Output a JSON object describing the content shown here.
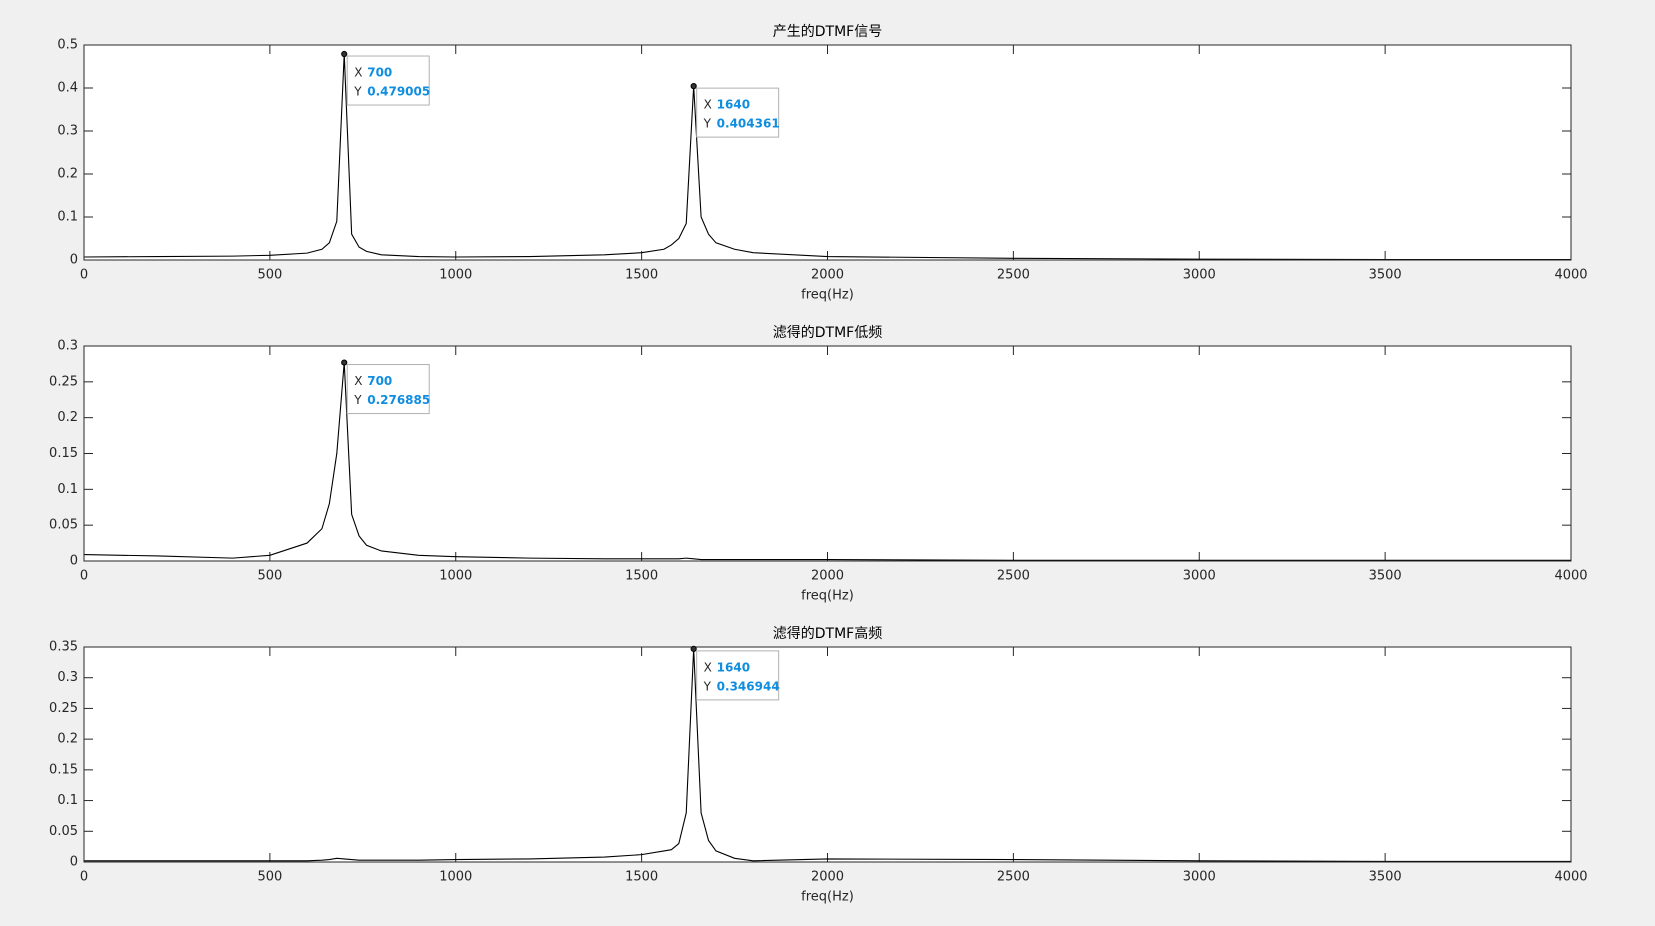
{
  "chart_data": [
    {
      "type": "line",
      "title": "产生的DTMF信号",
      "xlabel": "freq(Hz)",
      "color": "#000000",
      "x": [
        0,
        200,
        400,
        500,
        600,
        640,
        660,
        680,
        700,
        720,
        740,
        760,
        800,
        900,
        1000,
        1200,
        1400,
        1500,
        1560,
        1580,
        1600,
        1620,
        1640,
        1660,
        1680,
        1700,
        1750,
        1800,
        2000,
        2500,
        3000,
        3500,
        4000
      ],
      "values": [
        0.007,
        0.008,
        0.009,
        0.011,
        0.016,
        0.025,
        0.04,
        0.09,
        0.479005,
        0.06,
        0.03,
        0.02,
        0.012,
        0.008,
        0.007,
        0.008,
        0.012,
        0.017,
        0.025,
        0.035,
        0.05,
        0.085,
        0.404361,
        0.1,
        0.06,
        0.04,
        0.025,
        0.017,
        0.008,
        0.004,
        0.002,
        0.001,
        0.001
      ],
      "xlim": [
        0,
        4000
      ],
      "xticks": [
        0,
        500,
        1000,
        1500,
        2000,
        2500,
        3000,
        3500,
        4000
      ],
      "ylim": [
        0,
        0.5
      ],
      "yticks": [
        0,
        0.1,
        0.2,
        0.3,
        0.4,
        0.5
      ],
      "datatips": [
        {
          "x_label": "X",
          "x": 700,
          "y_label": "Y",
          "y": 0.479005
        },
        {
          "x_label": "X",
          "x": 1640,
          "y_label": "Y",
          "y": 0.404361
        }
      ]
    },
    {
      "type": "line",
      "title": "滤得的DTMF低频",
      "xlabel": "freq(Hz)",
      "color": "#000000",
      "x": [
        0,
        200,
        400,
        500,
        600,
        640,
        660,
        680,
        700,
        720,
        740,
        760,
        800,
        900,
        1000,
        1200,
        1400,
        1500,
        1560,
        1580,
        1600,
        1620,
        1640,
        1660,
        1680,
        1700,
        1750,
        1800,
        2000,
        2500,
        3000,
        3500,
        4000
      ],
      "values": [
        0.009,
        0.007,
        0.004,
        0.008,
        0.025,
        0.045,
        0.08,
        0.15,
        0.276885,
        0.065,
        0.035,
        0.022,
        0.014,
        0.008,
        0.006,
        0.004,
        0.003,
        0.003,
        0.003,
        0.003,
        0.003,
        0.004,
        0.003,
        0.002,
        0.002,
        0.002,
        0.002,
        0.002,
        0.002,
        0.001,
        0.001,
        0.001,
        0.001
      ],
      "xlim": [
        0,
        4000
      ],
      "xticks": [
        0,
        500,
        1000,
        1500,
        2000,
        2500,
        3000,
        3500,
        4000
      ],
      "ylim": [
        0,
        0.3
      ],
      "yticks": [
        0,
        0.05,
        0.1,
        0.15,
        0.2,
        0.25,
        0.3
      ],
      "datatips": [
        {
          "x_label": "X",
          "x": 700,
          "y_label": "Y",
          "y": 0.276885
        }
      ]
    },
    {
      "type": "line",
      "title": "滤得的DTMF高频",
      "xlabel": "freq(Hz)",
      "color": "#000000",
      "x": [
        0,
        200,
        400,
        500,
        600,
        640,
        660,
        680,
        700,
        720,
        740,
        760,
        800,
        900,
        1000,
        1200,
        1400,
        1500,
        1560,
        1580,
        1600,
        1620,
        1640,
        1660,
        1680,
        1700,
        1750,
        1800,
        2000,
        2500,
        3000,
        3500,
        4000
      ],
      "values": [
        0.002,
        0.002,
        0.002,
        0.002,
        0.002,
        0.003,
        0.004,
        0.006,
        0.005,
        0.004,
        0.003,
        0.003,
        0.003,
        0.003,
        0.004,
        0.005,
        0.008,
        0.012,
        0.018,
        0.02,
        0.03,
        0.08,
        0.346944,
        0.08,
        0.035,
        0.018,
        0.006,
        0.002,
        0.005,
        0.004,
        0.002,
        0.001,
        0.001
      ],
      "xlim": [
        0,
        4000
      ],
      "xticks": [
        0,
        500,
        1000,
        1500,
        2000,
        2500,
        3000,
        3500,
        4000
      ],
      "ylim": [
        0,
        0.35
      ],
      "yticks": [
        0,
        0.05,
        0.1,
        0.15,
        0.2,
        0.25,
        0.3,
        0.35
      ],
      "datatips": [
        {
          "x_label": "X",
          "x": 1640,
          "y_label": "Y",
          "y": 0.346944
        }
      ]
    }
  ]
}
